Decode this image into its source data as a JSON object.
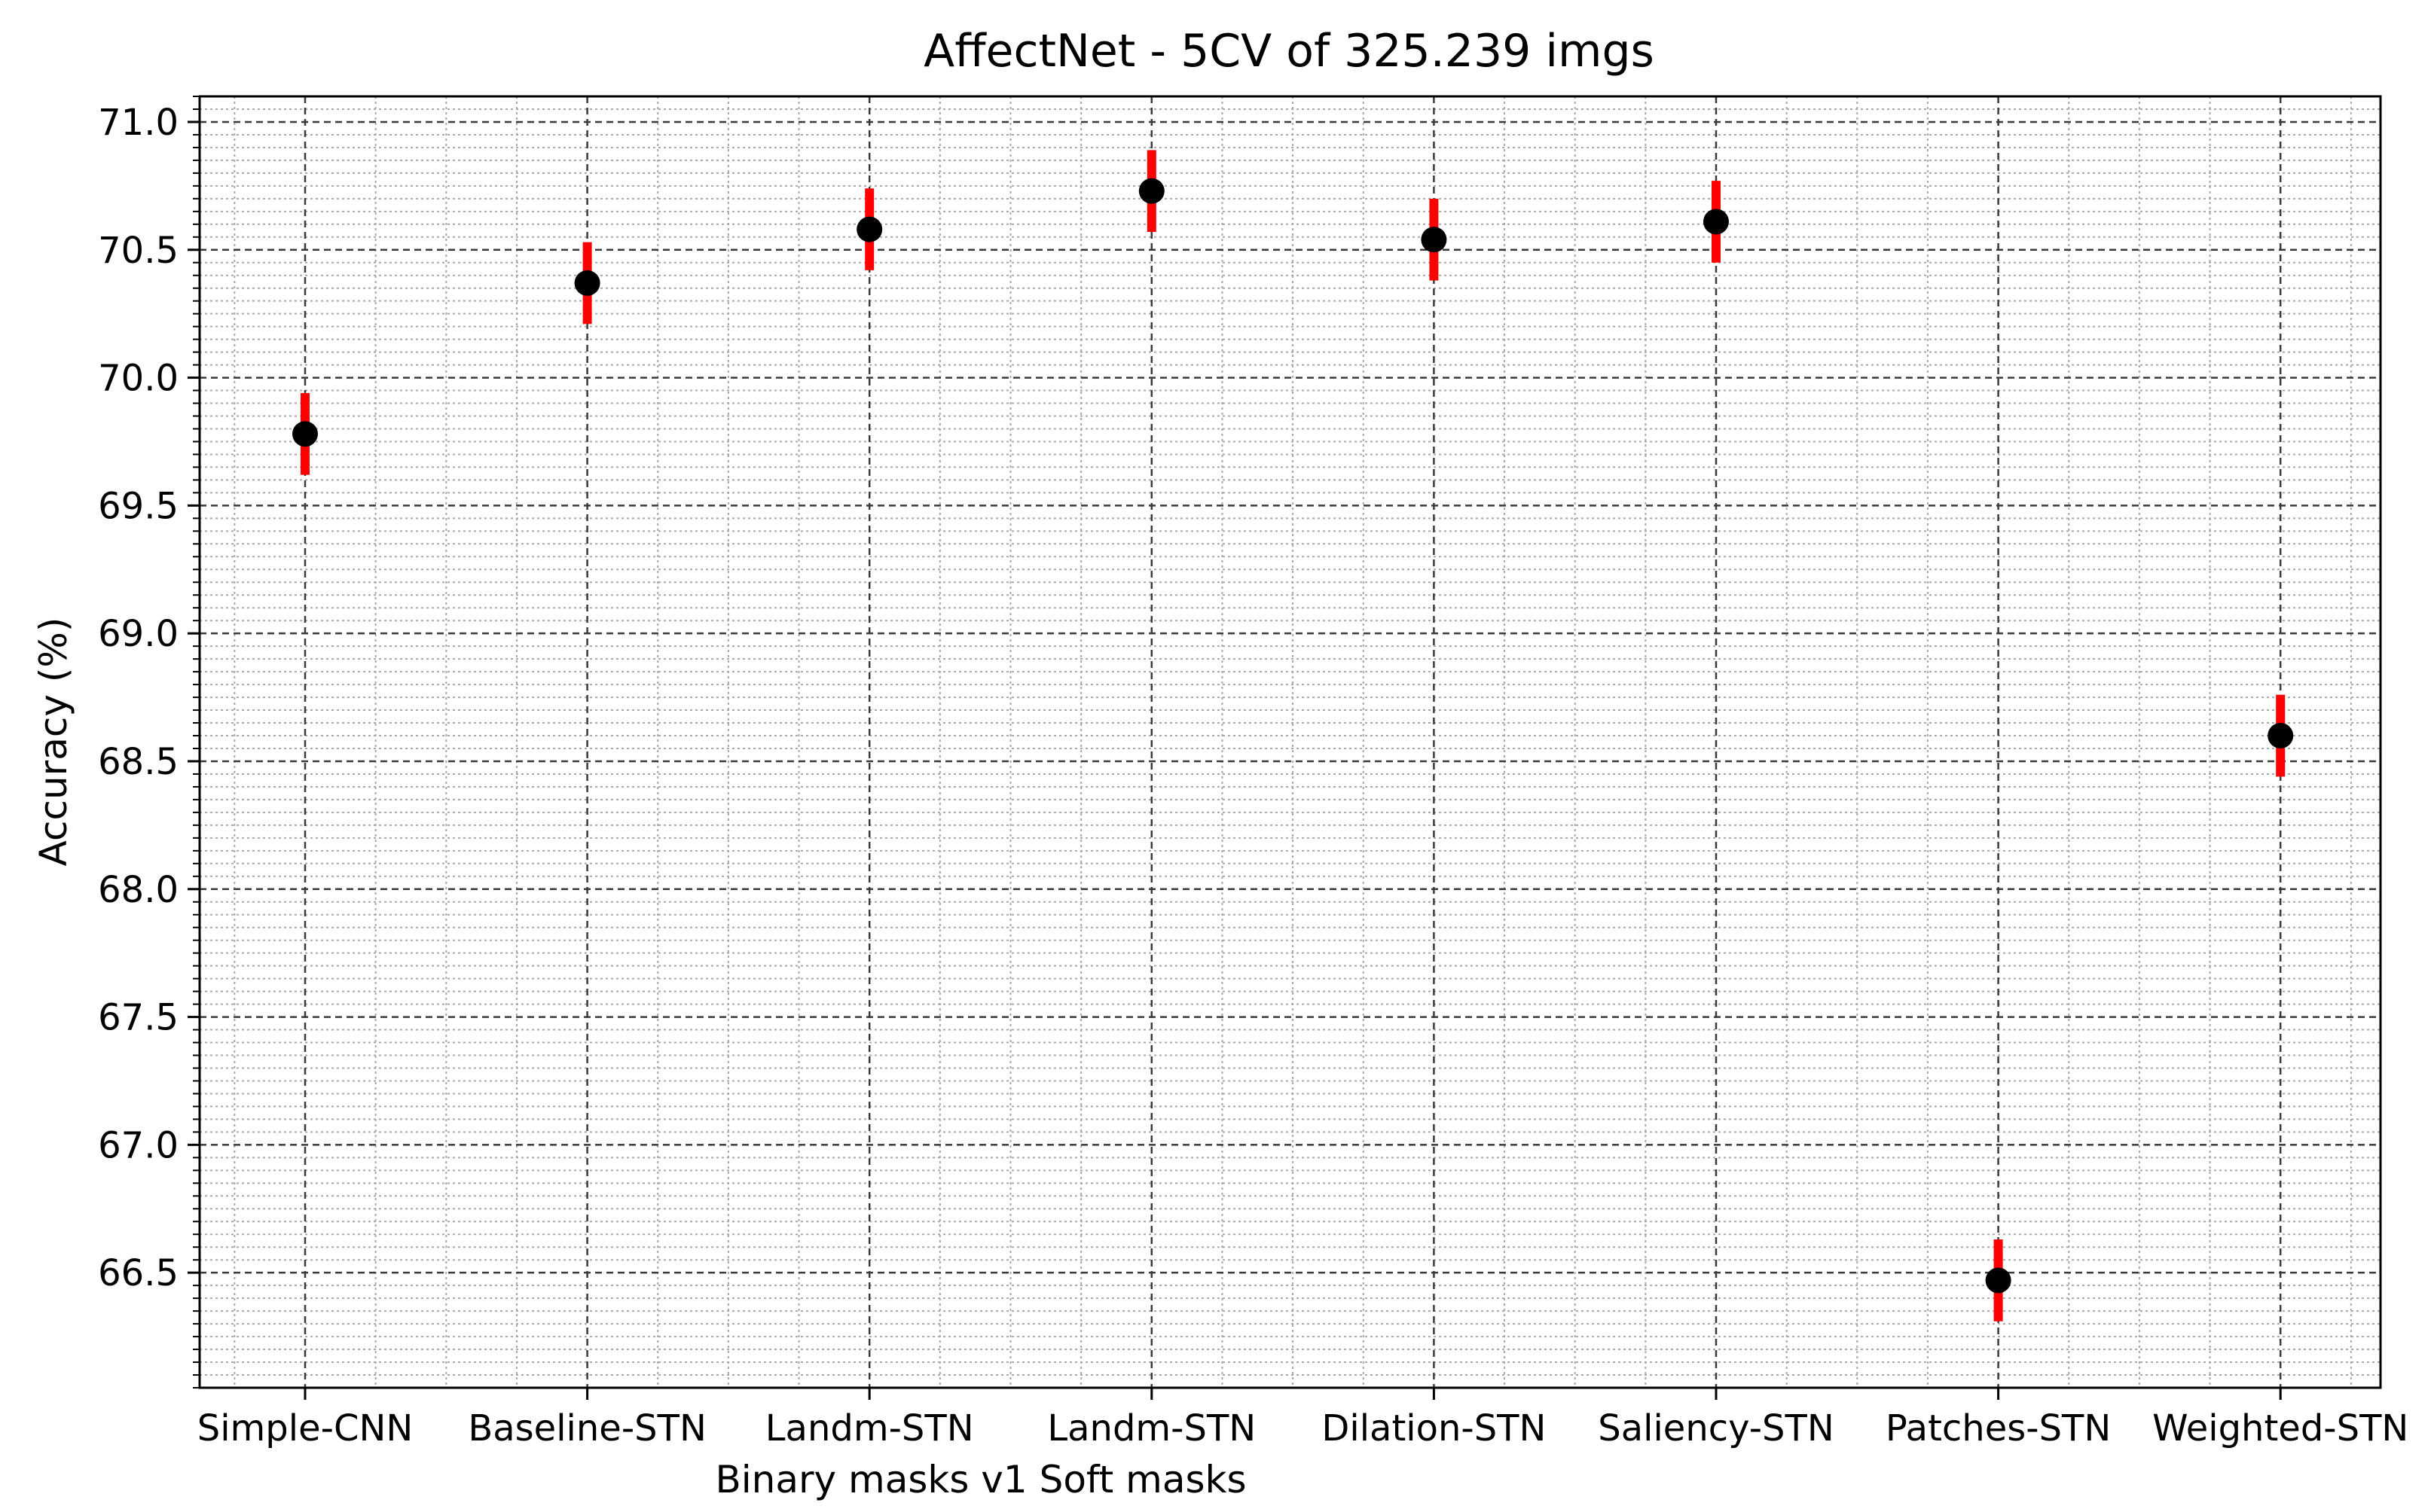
{
  "chart_data": {
    "type": "scatter",
    "title": "AffectNet - 5CV of 325.239 imgs",
    "xlabel": "Binary masks v1 Soft masks",
    "ylabel": "Accuracy (%)",
    "categories": [
      "Simple-CNN",
      "Baseline-STN",
      "Landm-STN",
      "Landm-STN",
      "Dilation-STN",
      "Saliency-STN",
      "Patches-STN",
      "Weighted-STN"
    ],
    "series": [
      {
        "name": "Accuracy",
        "values": [
          69.78,
          70.37,
          70.58,
          70.73,
          70.54,
          70.61,
          66.47,
          68.6
        ],
        "error": [
          0.16,
          0.16,
          0.16,
          0.16,
          0.16,
          0.16,
          0.16,
          0.16
        ],
        "marker_color": "#000000",
        "error_color": "#ff0000"
      }
    ],
    "ylim": [
      66.05,
      71.1
    ],
    "yticks": [
      "66.5",
      "67.0",
      "67.5",
      "68.0",
      "68.5",
      "69.0",
      "69.5",
      "70.0",
      "70.5",
      "71.0"
    ],
    "grid": true
  }
}
